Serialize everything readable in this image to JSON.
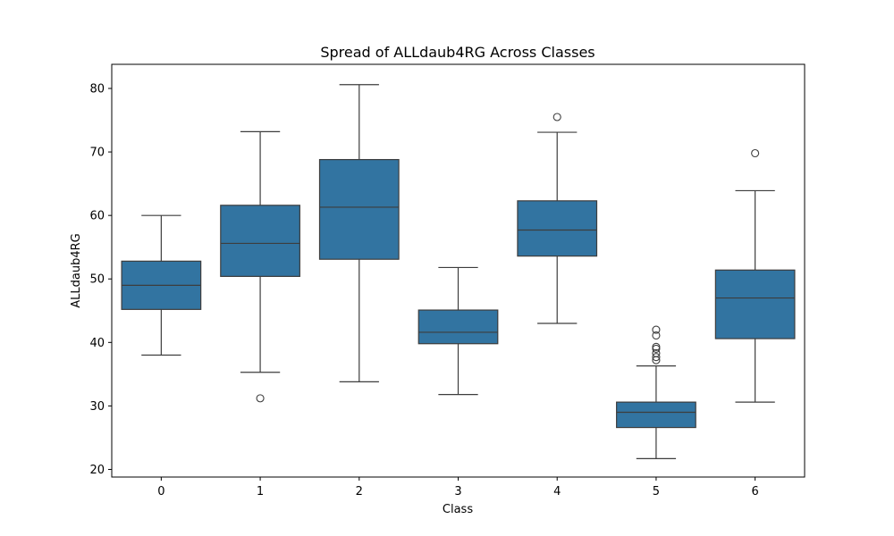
{
  "chart_data": {
    "type": "box",
    "title": "Spread of ALLdaub4RG Across Classes",
    "xlabel": "Class",
    "ylabel": "ALLdaub4RG",
    "ylim": [
      18.8,
      83.8
    ],
    "yticks": [
      20,
      30,
      40,
      50,
      60,
      70,
      80
    ],
    "grid": false,
    "box_color": "#3274a1",
    "line_color": "#3d3d3d",
    "categories": [
      "0",
      "1",
      "2",
      "3",
      "4",
      "5",
      "6"
    ],
    "boxes": [
      {
        "category": "0",
        "whisker_low": 38.0,
        "q1": 45.2,
        "median": 49.0,
        "q3": 52.8,
        "whisker_high": 60.0,
        "outliers": []
      },
      {
        "category": "1",
        "whisker_low": 35.3,
        "q1": 50.4,
        "median": 55.6,
        "q3": 61.6,
        "whisker_high": 73.2,
        "outliers": [
          31.2
        ]
      },
      {
        "category": "2",
        "whisker_low": 33.8,
        "q1": 53.1,
        "median": 61.3,
        "q3": 68.8,
        "whisker_high": 80.6,
        "outliers": []
      },
      {
        "category": "3",
        "whisker_low": 31.8,
        "q1": 39.8,
        "median": 41.6,
        "q3": 45.1,
        "whisker_high": 51.8,
        "outliers": []
      },
      {
        "category": "4",
        "whisker_low": 43.0,
        "q1": 53.6,
        "median": 57.7,
        "q3": 62.3,
        "whisker_high": 73.1,
        "outliers": [
          75.5
        ]
      },
      {
        "category": "5",
        "whisker_low": 21.7,
        "q1": 26.6,
        "median": 29.0,
        "q3": 30.6,
        "whisker_high": 36.3,
        "outliers": [
          37.2,
          37.7,
          38.3,
          39.0,
          39.3,
          41.1,
          42.0
        ]
      },
      {
        "category": "6",
        "whisker_low": 30.6,
        "q1": 40.6,
        "median": 47.0,
        "q3": 51.4,
        "whisker_high": 63.9,
        "outliers": [
          69.8
        ]
      }
    ]
  }
}
